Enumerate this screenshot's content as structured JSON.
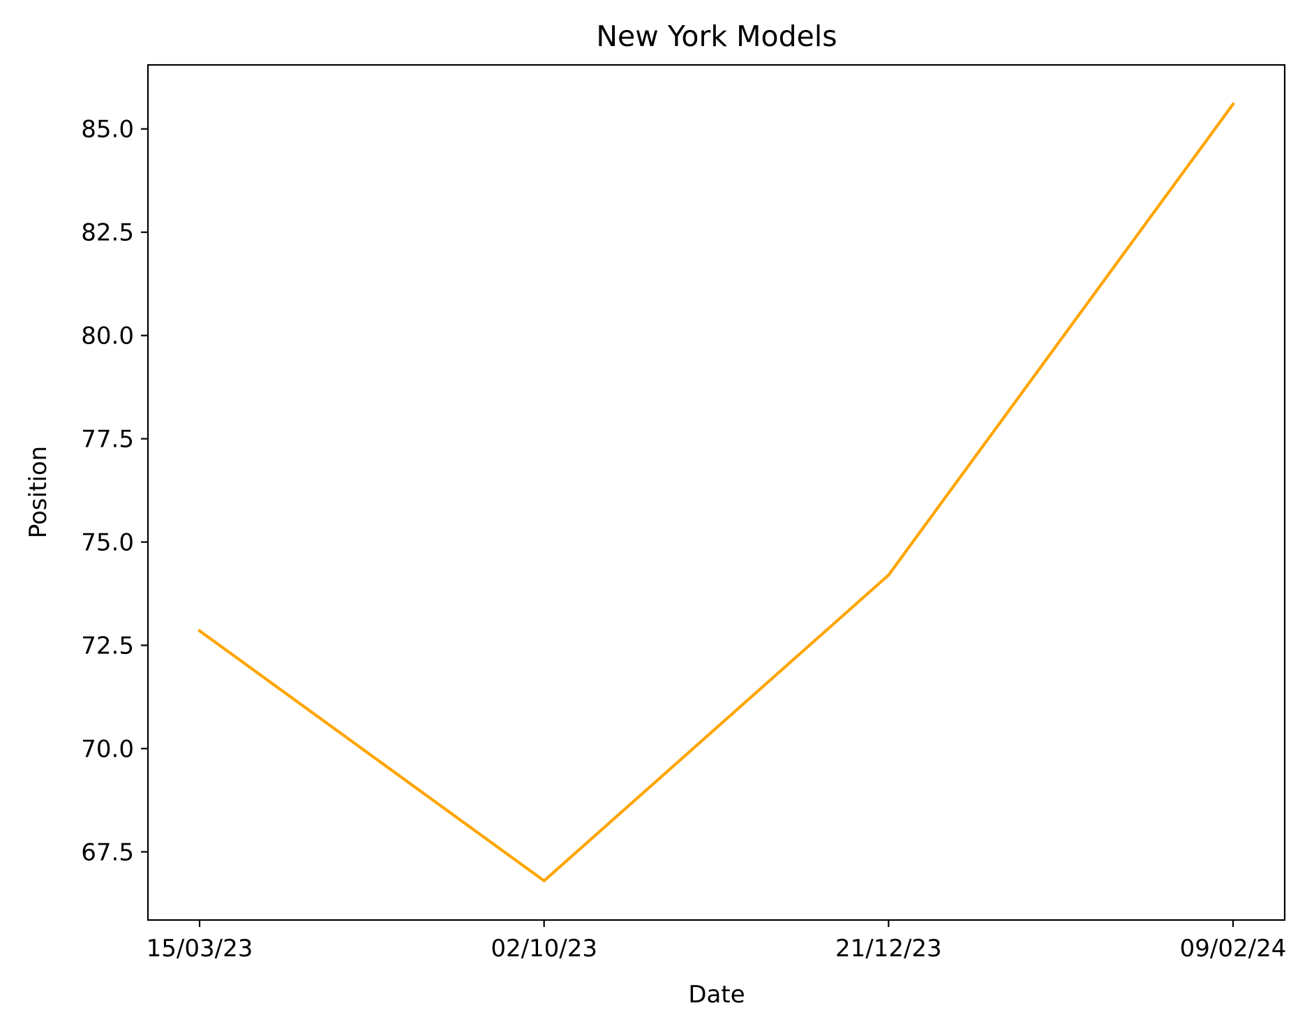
{
  "chart_data": {
    "type": "line",
    "title": "New York Models",
    "xlabel": "Date",
    "ylabel": "Position",
    "x": [
      "15/03/23",
      "02/10/23",
      "21/12/23",
      "09/02/24"
    ],
    "series": [
      {
        "values": [
          72.85,
          66.8,
          74.2,
          85.6
        ],
        "color": "#FFA500"
      }
    ],
    "ylim": [
      65.85,
      86.55
    ],
    "yticks": [
      "67.5",
      "70.0",
      "72.5",
      "75.0",
      "77.5",
      "80.0",
      "82.5",
      "85.0"
    ],
    "grid": false,
    "legend": "none"
  }
}
